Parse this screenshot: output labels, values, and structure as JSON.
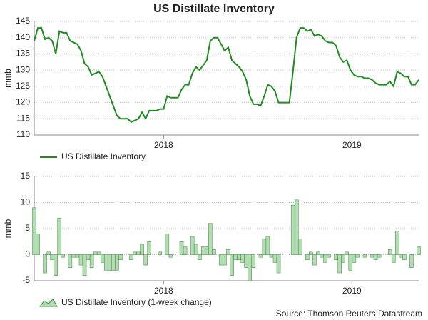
{
  "chart_data": [
    {
      "type": "line",
      "title": "US Distillate Inventory",
      "ylabel": "mmb",
      "xlim": [
        0,
        107
      ],
      "xticks": [
        {
          "value": 36,
          "label": "2018"
        },
        {
          "value": 88.4,
          "label": "2019"
        }
      ],
      "ylim": [
        110,
        145
      ],
      "yticks": [
        110,
        115,
        120,
        125,
        130,
        135,
        140,
        145
      ],
      "grid": true,
      "series": [
        {
          "name": "US Distillate Inventory",
          "color": "#1f8c1f",
          "values": [
            139,
            143,
            143,
            139.5,
            140,
            139,
            135,
            142,
            141.5,
            141.5,
            139,
            138.5,
            138,
            136,
            132,
            131,
            128.5,
            129,
            129.5,
            128,
            125,
            122,
            119,
            116,
            115,
            115,
            115,
            114,
            114.5,
            115,
            117,
            115,
            117.5,
            117.5,
            117.5,
            118,
            118,
            122,
            121.5,
            121.5,
            121.5,
            124,
            125.5,
            125.5,
            129,
            131,
            130,
            131.5,
            133,
            139,
            140,
            140,
            138,
            136,
            137,
            133,
            132,
            131,
            129.5,
            127,
            122,
            119.5,
            119.5,
            119,
            122,
            125.5,
            125,
            123.5,
            120,
            120,
            120,
            120,
            129.5,
            140,
            143,
            143,
            142,
            142.5,
            140.5,
            141,
            140.5,
            139,
            138.5,
            138.5,
            137.5,
            134,
            132.5,
            133,
            130,
            128.5,
            128,
            128,
            127.5,
            127.5,
            127,
            126,
            125.5,
            125.5,
            125.5,
            126.5,
            125,
            129.5,
            129,
            128,
            128,
            125.5,
            125.5,
            127
          ]
        }
      ]
    },
    {
      "type": "bar",
      "ylabel": "mmb",
      "xlim": [
        0,
        107
      ],
      "xticks": [
        {
          "value": 36,
          "label": "2018"
        },
        {
          "value": 88.4,
          "label": "2019"
        }
      ],
      "ylim": [
        -5,
        15
      ],
      "yticks": [
        -5,
        0,
        5,
        10,
        15
      ],
      "grid": true,
      "series": [
        {
          "name": "US Distillate Inventory (1-week change)",
          "color": "#b5dbb5",
          "values": [
            9,
            4,
            0,
            -3.5,
            0.5,
            -1,
            -4,
            7,
            -0.5,
            0,
            -2.5,
            -0.5,
            -0.5,
            -2,
            -4,
            -1,
            -2.5,
            0.5,
            0.5,
            -1.5,
            -3,
            -3,
            -3,
            -3,
            -1,
            0,
            0,
            -1,
            0.5,
            0.5,
            2,
            -2,
            2.5,
            0,
            0,
            0.5,
            0,
            4,
            -0.5,
            0,
            0,
            2.5,
            1.5,
            0,
            3.5,
            2,
            -1,
            1.5,
            1.5,
            6,
            1,
            0,
            -2,
            -2,
            1,
            -4,
            -1,
            -1,
            -1.5,
            -2.5,
            -5,
            -2.5,
            0,
            -0.5,
            3,
            3.5,
            -0.5,
            -1.5,
            -3.5,
            0,
            0,
            0,
            9.5,
            10.5,
            3,
            0,
            -1,
            0.5,
            -2,
            0.5,
            -0.5,
            -1.5,
            -0.5,
            0,
            -1,
            -3.5,
            -1.5,
            0.5,
            -3,
            -1.5,
            -0.5,
            0,
            -0.5,
            0,
            -0.5,
            -1,
            -0.5,
            0,
            0,
            1,
            -1.5,
            4.5,
            -0.5,
            -1,
            0,
            -2.5,
            0,
            1.5
          ]
        }
      ]
    }
  ],
  "source": "Source: Thomson Reuters Datastream"
}
